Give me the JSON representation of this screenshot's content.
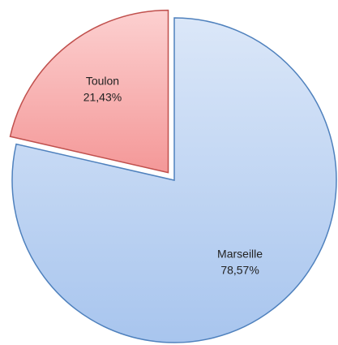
{
  "chart_data": {
    "type": "pie",
    "categories": [
      "Marseille",
      "Toulon"
    ],
    "values": [
      78.57,
      21.43
    ],
    "value_labels": [
      "78,57%",
      "21,43%"
    ],
    "colors": [
      "#4f81bd",
      "#c0504d"
    ],
    "exploded": [
      false,
      true
    ]
  }
}
